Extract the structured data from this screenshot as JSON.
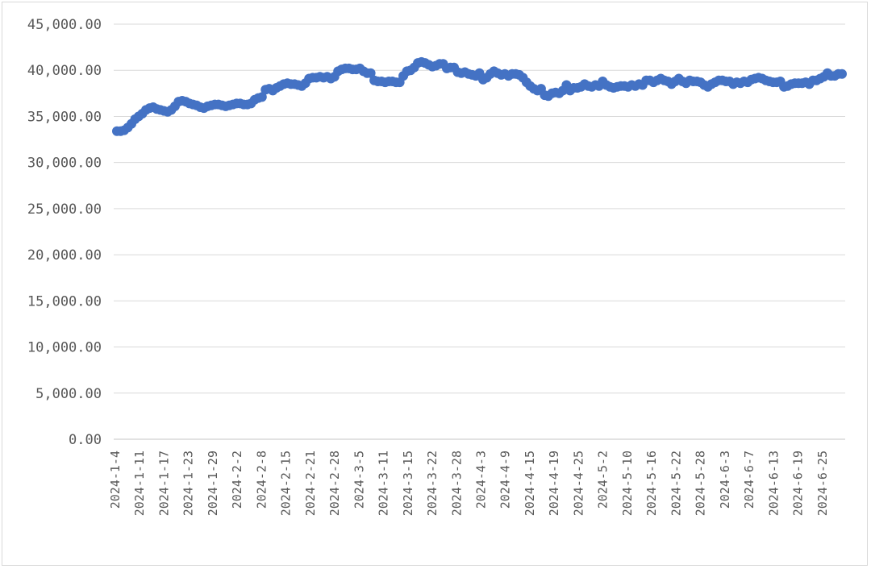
{
  "chart_data": {
    "type": "line",
    "title": "",
    "xlabel": "",
    "ylabel": "",
    "ylim": [
      0,
      45000
    ],
    "y_ticks": [
      0,
      5000,
      10000,
      15000,
      20000,
      25000,
      30000,
      35000,
      40000,
      45000
    ],
    "y_tick_labels": [
      "0.00",
      "5,000.00",
      "10,000.00",
      "15,000.00",
      "20,000.00",
      "25,000.00",
      "30,000.00",
      "35,000.00",
      "40,000.00",
      "45,000.00"
    ],
    "x_tick_labels": [
      "2024-1-4",
      "2024-1-11",
      "2024-1-17",
      "2024-1-23",
      "2024-1-29",
      "2024-2-2",
      "2024-2-8",
      "2024-2-15",
      "2024-2-21",
      "2024-2-28",
      "2024-3-5",
      "2024-3-11",
      "2024-3-15",
      "2024-3-22",
      "2024-3-28",
      "2024-4-3",
      "2024-4-9",
      "2024-4-15",
      "2024-4-19",
      "2024-4-25",
      "2024-5-2",
      "2024-5-10",
      "2024-5-16",
      "2024-5-22",
      "2024-5-28",
      "2024-6-3",
      "2024-6-7",
      "2024-6-13",
      "2024-6-19",
      "2024-6-25"
    ],
    "grid": true,
    "legend": "none",
    "marker": "circle",
    "series_color": "#4472c4",
    "grid_color": "#d9d9d9",
    "series": [
      {
        "values": [
          33400,
          33400,
          33500,
          33800,
          34200,
          34700,
          35000,
          35300,
          35700,
          35900,
          36000,
          35800,
          35700,
          35600,
          35500,
          35700,
          36100,
          36600,
          36700,
          36600,
          36400,
          36300,
          36200,
          36000,
          35900,
          36100,
          36200,
          36300,
          36300,
          36200,
          36100,
          36200,
          36300,
          36400,
          36400,
          36300,
          36300,
          36400,
          36800,
          37000,
          37100,
          37900,
          38000,
          37800,
          38100,
          38300,
          38500,
          38600,
          38500,
          38500,
          38400,
          38300,
          38600,
          39100,
          39200,
          39200,
          39300,
          39200,
          39300,
          39100,
          39300,
          39900,
          40100,
          40200,
          40200,
          40100,
          40100,
          40200,
          39900,
          39700,
          39700,
          38900,
          38800,
          38800,
          38700,
          38800,
          38800,
          38700,
          38700,
          39400,
          39900,
          40000,
          40300,
          40800,
          40900,
          40800,
          40600,
          40400,
          40500,
          40700,
          40700,
          40200,
          40300,
          40300,
          39800,
          39700,
          39800,
          39600,
          39500,
          39400,
          39700,
          39000,
          39200,
          39600,
          39900,
          39700,
          39500,
          39600,
          39400,
          39600,
          39600,
          39500,
          39200,
          38700,
          38300,
          38000,
          37800,
          38000,
          37300,
          37200,
          37500,
          37600,
          37500,
          37800,
          38400,
          37800,
          38100,
          38100,
          38200,
          38500,
          38300,
          38200,
          38400,
          38300,
          38800,
          38400,
          38200,
          38100,
          38200,
          38300,
          38300,
          38200,
          38400,
          38300,
          38500,
          38400,
          38900,
          38900,
          38700,
          38900,
          39100,
          38900,
          38800,
          38500,
          38800,
          39100,
          38800,
          38600,
          38900,
          38800,
          38800,
          38700,
          38400,
          38200,
          38500,
          38700,
          38900,
          38900,
          38800,
          38800,
          38500,
          38700,
          38600,
          38800,
          38700,
          39000,
          39100,
          39200,
          39100,
          38900,
          38800,
          38700,
          38700,
          38800,
          38200,
          38300,
          38500,
          38600,
          38600,
          38600,
          38700,
          38500,
          38900,
          38900,
          39100,
          39300,
          39700,
          39400,
          39400,
          39600,
          39600
        ]
      }
    ]
  }
}
